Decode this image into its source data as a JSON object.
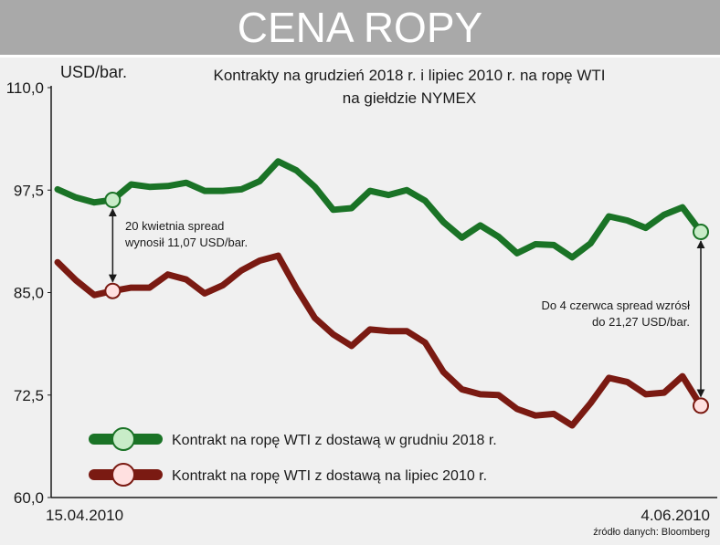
{
  "banner": {
    "title": "CENA ROPY"
  },
  "chart_data": {
    "type": "line",
    "title": "Kontrakty na grudzień 2018 r. i lipiec 2010 r. na ropę WTI",
    "subtitle": "na giełdzie NYMEX",
    "ylabel": "USD/bar.",
    "ylim": [
      60.0,
      110.0
    ],
    "yticks": [
      "110,0",
      "97,5",
      "85,0",
      "72,5",
      "60,0"
    ],
    "x_start_label": "15.04.2010",
    "x_end_label": "4.06.2010",
    "source": "źródło danych: Bloomberg",
    "colors": {
      "green": "#1a7326",
      "red": "#7a1a12",
      "green_marker": "#c8ecc8",
      "red_marker": "#ffe0e0"
    },
    "series": [
      {
        "name": "Kontrakt na ropę WTI z dostawą w grudniu 2018 r.",
        "color": "#1a7326",
        "values": [
          97.6,
          96.6,
          96.0,
          96.3,
          98.2,
          97.9,
          98.0,
          98.4,
          97.4,
          97.4,
          97.6,
          98.6,
          101.0,
          99.9,
          97.9,
          95.1,
          95.3,
          97.4,
          96.9,
          97.5,
          96.2,
          93.6,
          91.7,
          93.2,
          91.8,
          89.8,
          90.9,
          90.8,
          89.3,
          91.0,
          94.3,
          93.8,
          92.9,
          94.5,
          95.4,
          92.4
        ]
      },
      {
        "name": "Kontrakt na ropę WTI z dostawą na lipiec 2010 r.",
        "color": "#7a1a12",
        "values": [
          88.7,
          86.5,
          84.7,
          85.2,
          85.6,
          85.6,
          87.2,
          86.6,
          84.9,
          85.9,
          87.7,
          88.9,
          89.5,
          85.5,
          81.9,
          79.9,
          78.5,
          80.5,
          80.3,
          80.3,
          78.9,
          75.3,
          73.2,
          72.6,
          72.5,
          70.8,
          70.0,
          70.2,
          68.8,
          71.5,
          74.6,
          74.1,
          72.6,
          72.8,
          74.8,
          71.2
        ]
      }
    ],
    "highlight_index": [
      3,
      35
    ],
    "annotations": [
      {
        "id": "start",
        "line1": "20 kwietnia spread",
        "line2": "wynosił 11,07 USD/bar."
      },
      {
        "id": "end",
        "line1": "Do 4 czerwca spread wzrósł",
        "line2": "do 21,27 USD/bar."
      }
    ]
  }
}
